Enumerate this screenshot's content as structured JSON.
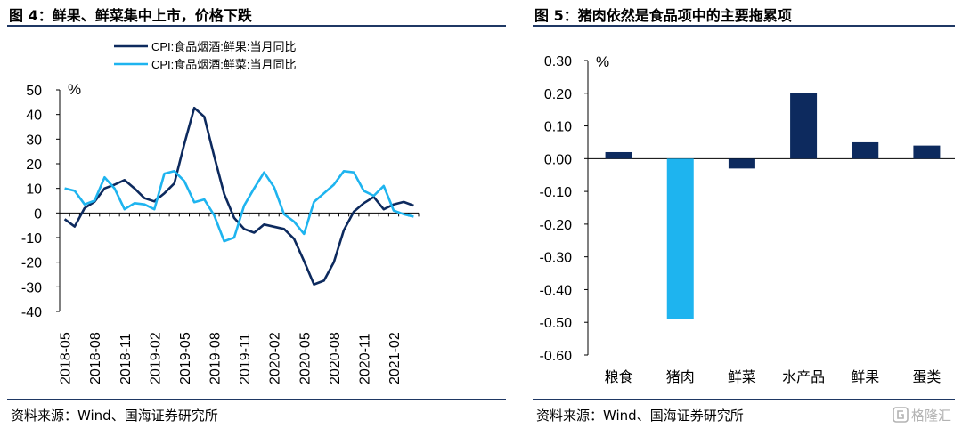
{
  "left_panel": {
    "title": "图 4：鲜果、鲜菜集中上市，价格下跌",
    "source": "资料来源：Wind、国海证券研究所"
  },
  "right_panel": {
    "title": "图 5：猪肉依然是食品项中的主要拖累项",
    "source": "资料来源：Wind、国海证券研究所"
  },
  "watermark": {
    "label": "格隆汇",
    "color": "#b3b3b3"
  },
  "chart_data": [
    {
      "type": "line",
      "title": "",
      "xlabel": "",
      "ylabel": "%",
      "ylim": [
        -40,
        50
      ],
      "yticks": [
        -40,
        -30,
        -20,
        -10,
        0,
        10,
        20,
        30,
        40,
        50
      ],
      "x_tick_labels": [
        "2018-05",
        "2018-08",
        "2018-11",
        "2019-02",
        "2019-05",
        "2019-08",
        "2019-11",
        "2020-02",
        "2020-05",
        "2020-08",
        "2020-11",
        "2021-02"
      ],
      "x_months": [
        "2018-05",
        "2018-06",
        "2018-07",
        "2018-08",
        "2018-09",
        "2018-10",
        "2018-11",
        "2018-12",
        "2019-01",
        "2019-02",
        "2019-03",
        "2019-04",
        "2019-05",
        "2019-06",
        "2019-07",
        "2019-08",
        "2019-09",
        "2019-10",
        "2019-11",
        "2019-12",
        "2020-01",
        "2020-02",
        "2020-03",
        "2020-04",
        "2020-05",
        "2020-06",
        "2020-07",
        "2020-08",
        "2020-09",
        "2020-10",
        "2020-11",
        "2020-12",
        "2021-01",
        "2021-02",
        "2021-03",
        "2021-04"
      ],
      "grid": false,
      "legend_position": "top",
      "series": [
        {
          "name": "CPI:食品烟酒:鲜果:当月同比",
          "color": "#0d2a5e",
          "values": [
            -2.5,
            -5.5,
            2,
            4.6,
            10,
            11.5,
            13.4,
            10,
            6,
            4.7,
            8,
            12,
            28,
            42.7,
            39.1,
            23,
            7.7,
            -2,
            -6.5,
            -8,
            -4.7,
            -5.6,
            -6.5,
            -10.5,
            -19.5,
            -29,
            -27.5,
            -20,
            -7,
            0.5,
            4,
            6.5,
            1.5,
            3.5,
            4.5,
            3
          ]
        },
        {
          "name": "CPI:食品烟酒:鲜菜:当月同比",
          "color": "#1eb4ef",
          "values": [
            10,
            9,
            3.5,
            5,
            14.5,
            10,
            1.5,
            4,
            3.5,
            1.5,
            16,
            17,
            13,
            4.4,
            5.5,
            -1,
            -11.5,
            -10,
            3,
            10,
            16.5,
            10.5,
            -0.5,
            -3.5,
            -8.5,
            4.5,
            8,
            11.5,
            17,
            16.5,
            9,
            7,
            11,
            1,
            -0.5,
            -1.5
          ]
        }
      ]
    },
    {
      "type": "bar",
      "title": "",
      "xlabel": "",
      "ylabel": "%",
      "ylim": [
        -0.6,
        0.3
      ],
      "yticks": [
        "0.30",
        "0.20",
        "0.10",
        "0.00",
        "-0.10",
        "-0.20",
        "-0.30",
        "-0.40",
        "-0.50",
        "-0.60"
      ],
      "categories": [
        "粮食",
        "猪肉",
        "鲜菜",
        "水产品",
        "鲜果",
        "蛋类"
      ],
      "values": [
        0.02,
        -0.49,
        -0.03,
        0.2,
        0.05,
        0.04
      ],
      "colors": [
        "#0d2a5e",
        "#1eb4ef",
        "#0d2a5e",
        "#0d2a5e",
        "#0d2a5e",
        "#0d2a5e"
      ],
      "grid": false
    }
  ]
}
